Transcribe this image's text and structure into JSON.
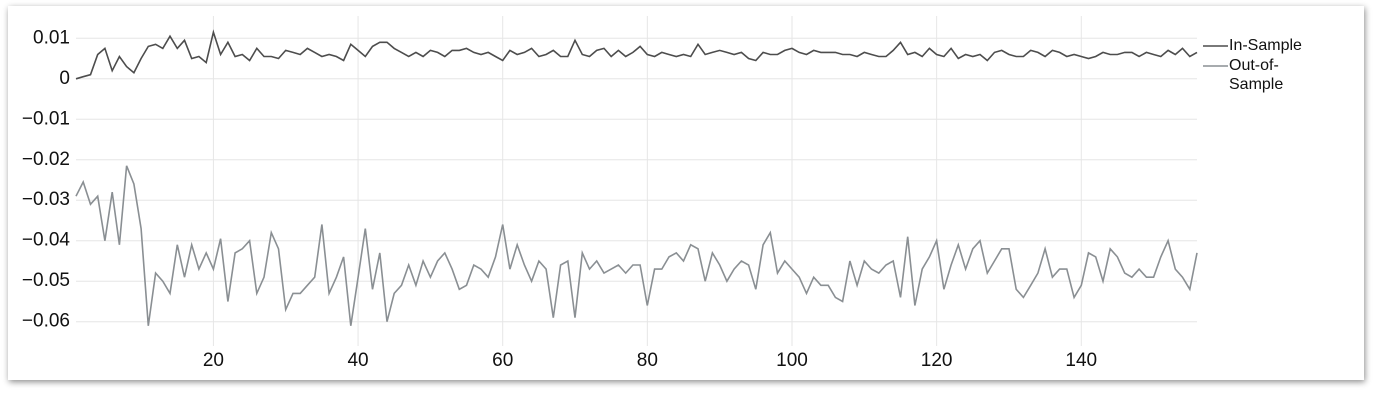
{
  "chart_data": {
    "type": "line",
    "x": [
      1,
      2,
      3,
      4,
      5,
      6,
      7,
      8,
      9,
      10,
      11,
      12,
      13,
      14,
      15,
      16,
      17,
      18,
      19,
      20,
      21,
      22,
      23,
      24,
      25,
      26,
      27,
      28,
      29,
      30,
      31,
      32,
      33,
      34,
      35,
      36,
      37,
      38,
      39,
      40,
      41,
      42,
      43,
      44,
      45,
      46,
      47,
      48,
      49,
      50,
      51,
      52,
      53,
      54,
      55,
      56,
      57,
      58,
      59,
      60,
      61,
      62,
      63,
      64,
      65,
      66,
      67,
      68,
      69,
      70,
      71,
      72,
      73,
      74,
      75,
      76,
      77,
      78,
      79,
      80,
      81,
      82,
      83,
      84,
      85,
      86,
      87,
      88,
      89,
      90,
      91,
      92,
      93,
      94,
      95,
      96,
      97,
      98,
      99,
      100,
      101,
      102,
      103,
      104,
      105,
      106,
      107,
      108,
      109,
      110,
      111,
      112,
      113,
      114,
      115,
      116,
      117,
      118,
      119,
      120,
      121,
      122,
      123,
      124,
      125,
      126,
      127,
      128,
      129,
      130,
      131,
      132,
      133,
      134,
      135,
      136,
      137,
      138,
      139,
      140,
      141,
      142,
      143,
      144,
      145,
      146,
      147,
      148,
      149,
      150,
      151,
      152,
      153,
      154,
      155,
      156
    ],
    "series": [
      {
        "name": "In-Sample",
        "color": "#4d4d4d",
        "values": [
          0,
          0.0005,
          0.001,
          0.006,
          0.0075,
          0.002,
          0.0055,
          0.003,
          0.0015,
          0.005,
          0.008,
          0.0085,
          0.0075,
          0.0105,
          0.0075,
          0.0095,
          0.005,
          0.0055,
          0.004,
          0.0115,
          0.006,
          0.009,
          0.0055,
          0.006,
          0.0045,
          0.0075,
          0.0055,
          0.0055,
          0.005,
          0.007,
          0.0065,
          0.006,
          0.0075,
          0.0065,
          0.0055,
          0.006,
          0.0055,
          0.0045,
          0.0085,
          0.007,
          0.0055,
          0.008,
          0.009,
          0.009,
          0.0075,
          0.0065,
          0.0055,
          0.0065,
          0.0055,
          0.007,
          0.0065,
          0.0055,
          0.007,
          0.007,
          0.0075,
          0.0065,
          0.006,
          0.0065,
          0.0055,
          0.0045,
          0.007,
          0.006,
          0.0065,
          0.0075,
          0.0055,
          0.006,
          0.007,
          0.0055,
          0.0055,
          0.0095,
          0.006,
          0.0055,
          0.007,
          0.0075,
          0.0055,
          0.007,
          0.0055,
          0.0065,
          0.008,
          0.006,
          0.0055,
          0.0065,
          0.006,
          0.0055,
          0.006,
          0.0055,
          0.0085,
          0.006,
          0.0065,
          0.007,
          0.0065,
          0.006,
          0.0065,
          0.005,
          0.0045,
          0.0065,
          0.006,
          0.006,
          0.007,
          0.0075,
          0.0065,
          0.006,
          0.007,
          0.0065,
          0.0065,
          0.0065,
          0.006,
          0.006,
          0.0055,
          0.0065,
          0.006,
          0.0055,
          0.0055,
          0.007,
          0.009,
          0.006,
          0.0065,
          0.0055,
          0.0075,
          0.006,
          0.0055,
          0.0075,
          0.005,
          0.006,
          0.0055,
          0.006,
          0.0045,
          0.0065,
          0.007,
          0.006,
          0.0055,
          0.0055,
          0.007,
          0.0065,
          0.0055,
          0.007,
          0.0065,
          0.0055,
          0.006,
          0.0055,
          0.005,
          0.0055,
          0.0065,
          0.006,
          0.006,
          0.0065,
          0.0065,
          0.0055,
          0.0065,
          0.006,
          0.0055,
          0.007,
          0.006,
          0.0075,
          0.0055,
          0.0065
        ]
      },
      {
        "name": "Out-of-Sample",
        "color": "#8a8f93",
        "values": [
          -0.029,
          -0.0255,
          -0.031,
          -0.029,
          -0.04,
          -0.028,
          -0.041,
          -0.0215,
          -0.026,
          -0.037,
          -0.061,
          -0.048,
          -0.05,
          -0.053,
          -0.041,
          -0.049,
          -0.041,
          -0.047,
          -0.043,
          -0.047,
          -0.0395,
          -0.055,
          -0.043,
          -0.042,
          -0.04,
          -0.053,
          -0.049,
          -0.038,
          -0.042,
          -0.057,
          -0.053,
          -0.053,
          -0.051,
          -0.049,
          -0.036,
          -0.053,
          -0.049,
          -0.044,
          -0.061,
          -0.049,
          -0.037,
          -0.052,
          -0.043,
          -0.06,
          -0.053,
          -0.051,
          -0.046,
          -0.051,
          -0.045,
          -0.049,
          -0.045,
          -0.043,
          -0.047,
          -0.052,
          -0.051,
          -0.046,
          -0.047,
          -0.049,
          -0.044,
          -0.036,
          -0.047,
          -0.041,
          -0.046,
          -0.05,
          -0.045,
          -0.047,
          -0.059,
          -0.046,
          -0.045,
          -0.059,
          -0.043,
          -0.047,
          -0.045,
          -0.048,
          -0.047,
          -0.046,
          -0.048,
          -0.046,
          -0.046,
          -0.056,
          -0.047,
          -0.047,
          -0.044,
          -0.043,
          -0.045,
          -0.041,
          -0.042,
          -0.05,
          -0.043,
          -0.046,
          -0.05,
          -0.047,
          -0.045,
          -0.046,
          -0.052,
          -0.041,
          -0.038,
          -0.048,
          -0.045,
          -0.047,
          -0.049,
          -0.053,
          -0.049,
          -0.051,
          -0.051,
          -0.054,
          -0.055,
          -0.045,
          -0.051,
          -0.045,
          -0.047,
          -0.048,
          -0.046,
          -0.045,
          -0.054,
          -0.039,
          -0.056,
          -0.047,
          -0.044,
          -0.04,
          -0.052,
          -0.046,
          -0.041,
          -0.047,
          -0.042,
          -0.04,
          -0.048,
          -0.045,
          -0.042,
          -0.042,
          -0.052,
          -0.054,
          -0.051,
          -0.048,
          -0.042,
          -0.049,
          -0.047,
          -0.047,
          -0.054,
          -0.051,
          -0.043,
          -0.044,
          -0.05,
          -0.042,
          -0.044,
          -0.048,
          -0.049,
          -0.047,
          -0.049,
          -0.049,
          -0.044,
          -0.04,
          -0.047,
          -0.049,
          -0.052,
          -0.043
        ]
      }
    ],
    "xlim": [
      1,
      156
    ],
    "xticks": [
      20,
      40,
      60,
      80,
      100,
      120,
      140
    ],
    "ylim": [
      -0.066,
      0.0155
    ],
    "yticks": [
      0.01,
      0,
      {
        "value": -0.01,
        "label": "−0.01"
      },
      {
        "value": -0.02,
        "label": "−0.02"
      },
      {
        "value": -0.03,
        "label": "−0.03"
      },
      {
        "value": -0.04,
        "label": "−0.04"
      },
      {
        "value": -0.05,
        "label": "−0.05"
      },
      {
        "value": -0.06,
        "label": "−0.06"
      }
    ],
    "grid": true,
    "legend": "top-right"
  }
}
